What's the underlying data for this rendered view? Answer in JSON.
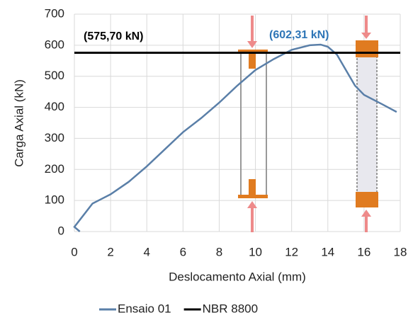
{
  "chart_data": {
    "type": "line",
    "xlabel": "Deslocamento Axial (mm)",
    "ylabel": "Carga Axial (kN)",
    "xlim": [
      0,
      18
    ],
    "xticks": [
      0,
      2,
      4,
      6,
      8,
      10,
      12,
      14,
      16,
      18
    ],
    "ylim": [
      0,
      700
    ],
    "yticks": [
      0,
      100,
      200,
      300,
      400,
      500,
      600,
      700
    ],
    "grid": true,
    "legend": "bottom",
    "series": [
      {
        "name": "Ensaio 01",
        "color": "#5a7fa8",
        "x": [
          0.3,
          0,
          1,
          1.5,
          2,
          3,
          4,
          5,
          6,
          7,
          8,
          9,
          10,
          11,
          12,
          13,
          13.6,
          14,
          14.5,
          15,
          15.5,
          16,
          17,
          17.8
        ],
        "values": [
          0,
          15,
          90,
          105,
          120,
          160,
          210,
          265,
          320,
          365,
          415,
          470,
          520,
          555,
          585,
          600,
          602,
          595,
          570,
          520,
          470,
          440,
          410,
          385
        ]
      },
      {
        "name": "NBR 8800",
        "color": "#000000",
        "x": [
          0,
          18
        ],
        "values": [
          575.7,
          575.7
        ]
      }
    ],
    "annotations": [
      {
        "text": "(575,70 kN)",
        "color": "#000000"
      },
      {
        "text": "(602,31 kN)",
        "color": "#2e75b6"
      }
    ]
  }
}
